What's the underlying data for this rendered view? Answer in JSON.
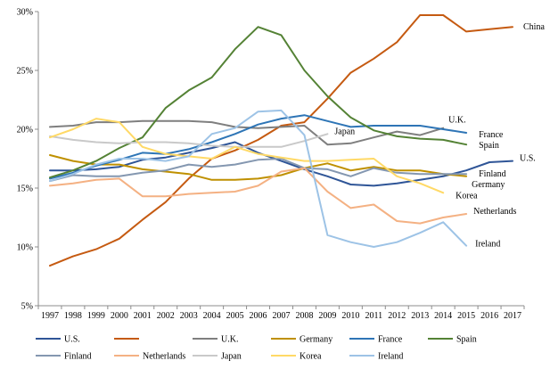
{
  "chart_data": {
    "type": "line",
    "title": "",
    "xlabel": "",
    "ylabel": "",
    "x": [
      "1997",
      "1998",
      "1999",
      "2000",
      "2001",
      "2002",
      "2003",
      "2004",
      "2005",
      "2006",
      "2007",
      "2008",
      "2009",
      "2010",
      "2011",
      "2012",
      "2013",
      "2014",
      "2015",
      "2016",
      "2017"
    ],
    "ylim": [
      5,
      30
    ],
    "yticks": [
      "5%",
      "10%",
      "15%",
      "20%",
      "25%",
      "30%"
    ],
    "yticks_values": [
      5,
      10,
      15,
      20,
      25,
      30
    ],
    "grid": false,
    "legend_position": "bottom",
    "series": [
      {
        "name": "U.S.",
        "color": "#2f5597",
        "label": "U.S.",
        "values": [
          16.5,
          16.5,
          16.6,
          16.8,
          17.4,
          17.6,
          18.0,
          18.4,
          18.9,
          18.0,
          17.3,
          16.6,
          16.0,
          15.3,
          15.2,
          15.4,
          15.7,
          16.0,
          16.5,
          17.2,
          17.3
        ]
      },
      {
        "name": "",
        "color": "#c55a11",
        "label": "China",
        "values": [
          8.4,
          9.2,
          9.8,
          10.7,
          12.3,
          13.8,
          15.8,
          17.5,
          18.2,
          19.1,
          20.3,
          20.6,
          22.6,
          24.8,
          26.0,
          27.4,
          29.7,
          29.7,
          28.3,
          28.5,
          28.7
        ]
      },
      {
        "name": "U.K.",
        "color": "#7f7f7f",
        "label": "U.K.",
        "values": [
          20.2,
          20.3,
          20.6,
          20.6,
          20.7,
          20.7,
          20.7,
          20.6,
          20.2,
          20.1,
          20.2,
          20.3,
          18.7,
          18.8,
          19.3,
          19.8,
          19.5,
          20.1,
          null,
          null,
          null
        ]
      },
      {
        "name": "Germany",
        "color": "#bf9000",
        "label": "Germany",
        "values": [
          17.8,
          17.3,
          17.0,
          17.0,
          16.6,
          16.4,
          16.2,
          15.7,
          15.7,
          15.8,
          16.1,
          16.7,
          17.1,
          16.5,
          16.8,
          16.5,
          16.5,
          16.2,
          16.0,
          null,
          null
        ]
      },
      {
        "name": "France",
        "color": "#2e75b6",
        "label": "France",
        "values": [
          15.8,
          16.3,
          16.9,
          17.4,
          18.0,
          17.9,
          18.3,
          18.9,
          19.6,
          20.4,
          20.9,
          21.2,
          20.7,
          20.2,
          20.3,
          20.3,
          20.3,
          20.0,
          19.7,
          null,
          null
        ]
      },
      {
        "name": "Spain",
        "color": "#548235",
        "label": "Spain",
        "values": [
          15.9,
          16.5,
          17.3,
          18.4,
          19.3,
          21.8,
          23.3,
          24.4,
          26.8,
          28.7,
          28.0,
          25.0,
          22.8,
          21.0,
          19.9,
          19.4,
          19.2,
          19.1,
          18.7,
          null,
          null
        ]
      },
      {
        "name": "Finland",
        "color": "#8497b0",
        "label": "Finland",
        "values": [
          15.6,
          16.1,
          16.0,
          16.0,
          16.3,
          16.5,
          17.0,
          16.8,
          17.0,
          17.4,
          17.5,
          16.7,
          16.6,
          16.0,
          16.7,
          16.3,
          16.2,
          16.2,
          16.2,
          null,
          null
        ]
      },
      {
        "name": "Netherlands",
        "color": "#f4b183",
        "label": "Netherlands",
        "values": [
          15.2,
          15.4,
          15.7,
          15.8,
          14.3,
          14.3,
          14.5,
          14.6,
          14.7,
          15.2,
          16.4,
          16.7,
          14.7,
          13.3,
          13.6,
          12.2,
          12.0,
          12.5,
          12.8,
          null,
          null
        ]
      },
      {
        "name": "Japan",
        "color": "#c9c9c9",
        "label": "Japan",
        "values": [
          19.4,
          19.1,
          18.9,
          18.8,
          18.9,
          18.9,
          18.8,
          18.6,
          18.5,
          18.5,
          18.5,
          19.0,
          19.6,
          null,
          null,
          null,
          null,
          null,
          null,
          null,
          null
        ]
      },
      {
        "name": "Korea",
        "color": "#ffd966",
        "label": "Korea",
        "values": [
          19.3,
          20.0,
          20.9,
          20.6,
          18.5,
          17.9,
          17.7,
          17.5,
          18.5,
          17.9,
          17.6,
          17.3,
          17.3,
          17.4,
          17.5,
          16.0,
          15.4,
          14.6,
          null,
          null,
          null
        ]
      },
      {
        "name": "Ireland",
        "color": "#9dc3e6",
        "label": "Ireland",
        "values": [
          15.6,
          16.2,
          17.0,
          17.5,
          17.5,
          17.3,
          17.7,
          19.6,
          20.1,
          21.5,
          21.6,
          19.5,
          11.0,
          10.4,
          10.0,
          10.4,
          11.2,
          12.1,
          10.1,
          null,
          null
        ]
      }
    ]
  }
}
